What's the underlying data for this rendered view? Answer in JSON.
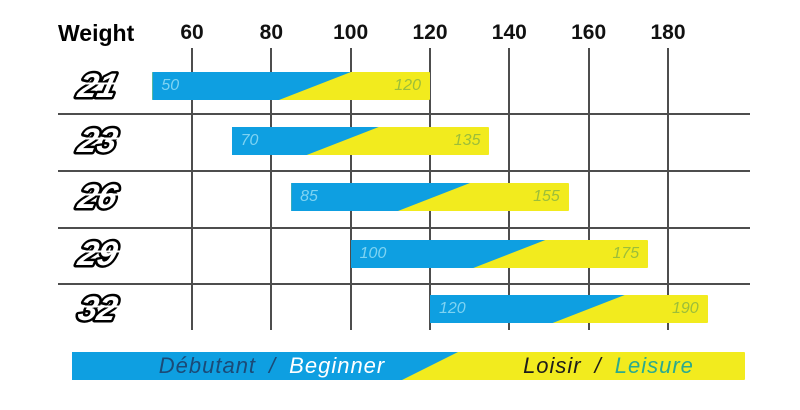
{
  "header": {
    "title": "Weight",
    "ticks": [
      "60",
      "80",
      "100",
      "120",
      "140",
      "160",
      "180"
    ]
  },
  "rows": [
    {
      "size": "21",
      "min": 50,
      "max": 120,
      "split": 91,
      "min_label": "50",
      "max_label": "120"
    },
    {
      "size": "23",
      "min": 70,
      "max": 135,
      "split": 98,
      "min_label": "70",
      "max_label": "135"
    },
    {
      "size": "26",
      "min": 85,
      "max": 155,
      "split": 121,
      "min_label": "85",
      "max_label": "155"
    },
    {
      "size": "29",
      "min": 100,
      "max": 175,
      "split": 140,
      "min_label": "100",
      "max_label": "175"
    },
    {
      "size": "32",
      "min": 120,
      "max": 190,
      "split": 160,
      "min_label": "120",
      "max_label": "190"
    }
  ],
  "legend": {
    "beginner_fr": "Débutant",
    "beginner_en": "Beginner",
    "leisure_fr": "Loisir",
    "leisure_en": "Leisure",
    "separator": "/"
  },
  "colors": {
    "beginner_blue": "#0E9FE1",
    "leisure_yellow": "#F2EB1E",
    "grid": "#4D4D4D",
    "min_label": "#7ED3F2",
    "max_label": "#9CBE3A",
    "legend_fr_navy": "#1B4A77",
    "legend_en_teal": "#2BAA8E"
  },
  "chart_data": {
    "type": "bar",
    "orientation": "horizontal_range",
    "title": "Weight",
    "categories": [
      "21",
      "23",
      "26",
      "29",
      "32"
    ],
    "x_ticks": [
      60,
      80,
      100,
      120,
      140,
      160,
      180
    ],
    "xlim": [
      40,
      195
    ],
    "grid": true,
    "legend_position": "bottom",
    "series": [
      {
        "name": "Débutant / Beginner",
        "color": "#0E9FE1",
        "ranges": [
          [
            50,
            91
          ],
          [
            70,
            98
          ],
          [
            85,
            121
          ],
          [
            100,
            140
          ],
          [
            120,
            160
          ]
        ]
      },
      {
        "name": "Loisir / Leisure",
        "color": "#F2EB1E",
        "ranges": [
          [
            91,
            120
          ],
          [
            98,
            135
          ],
          [
            121,
            155
          ],
          [
            140,
            175
          ],
          [
            160,
            190
          ]
        ]
      }
    ],
    "bar_labels": {
      "start": [
        50,
        70,
        85,
        100,
        120
      ],
      "end": [
        120,
        135,
        155,
        175,
        190
      ]
    }
  }
}
